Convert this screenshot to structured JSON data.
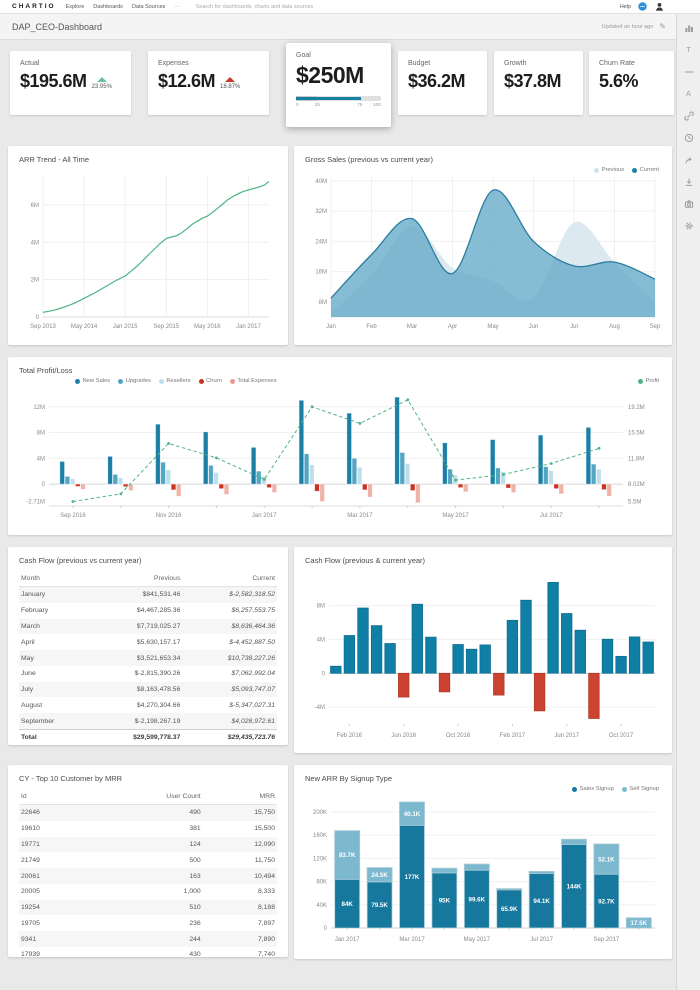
{
  "nav": {
    "brand": "CHARTIO",
    "links": [
      "Explore",
      "Dashboards",
      "Data Sources"
    ],
    "more_label": "⋯",
    "search_placeholder": "Search for dashboards, charts and data sources",
    "help_label": "Help"
  },
  "breadcrumb": {
    "title": "DAP_CEO-Dashboard",
    "updated": "Updated an hour ago"
  },
  "sidebar_icons": [
    "bar-chart",
    "text",
    "divider",
    "annotation",
    "link",
    "history",
    "share",
    "download",
    "camera",
    "settings"
  ],
  "kpis": [
    {
      "label": "Actual",
      "value": "$195.6M",
      "delta": "23.95%",
      "direction": "up",
      "trend_color": "#6fbf9a"
    },
    {
      "label": "Expenses",
      "value": "$12.6M",
      "delta": "18.87%",
      "direction": "up",
      "trend_color": "#cc3a28"
    },
    {
      "label": "Goal",
      "value": "$250M",
      "gauge": {
        "ticks": [
          "0",
          "25",
          "75",
          "100"
        ],
        "tick_pcts": [
          0,
          25,
          75,
          100
        ],
        "fill_pct": 77,
        "band_pct": 25,
        "fill_color": "#15809f"
      }
    },
    {
      "label": "Budget",
      "value": "$36.2M"
    },
    {
      "label": "Growth",
      "value": "$37.8M"
    },
    {
      "label": "Churn Rate",
      "value": "5.6%"
    }
  ],
  "chart_data": [
    {
      "id": "arr_trend",
      "type": "line",
      "title": "ARR Trend - All Time",
      "line_color": "#4db584",
      "ylim": [
        0,
        7.6
      ],
      "yticks": [
        {
          "label": "0",
          "value": 0
        },
        {
          "label": "2M",
          "value": 2
        },
        {
          "label": "4M",
          "value": 4
        },
        {
          "label": "6M",
          "value": 6
        }
      ],
      "x_labels": [
        "Sep 2013",
        "May 2014",
        "Jan 2015",
        "Sep 2015",
        "May 2016",
        "Jan 2017"
      ],
      "x_label_indices": [
        0,
        8,
        16,
        24,
        32,
        40
      ],
      "values": [
        0.25,
        0.3,
        0.36,
        0.43,
        0.52,
        0.62,
        0.73,
        0.86,
        1.0,
        1.14,
        1.28,
        1.44,
        1.6,
        1.76,
        1.92,
        2.06,
        2.2,
        2.42,
        2.65,
        2.9,
        3.18,
        3.45,
        3.72,
        3.98,
        4.2,
        4.28,
        4.35,
        4.5,
        4.72,
        4.95,
        5.12,
        5.28,
        5.4,
        5.6,
        5.82,
        6.05,
        6.28,
        6.45,
        6.6,
        6.72,
        6.8,
        6.88,
        6.95,
        7.05,
        7.25
      ]
    },
    {
      "id": "gross_sales",
      "type": "area",
      "title": "Gross Sales (previous vs current year)",
      "legend": [
        {
          "label": "Previous",
          "color": "#cfe3ec"
        },
        {
          "label": "Current",
          "color": "#1f7fa8"
        }
      ],
      "categories": [
        "Jan",
        "Feb",
        "Mar",
        "Apr",
        "May",
        "Jun",
        "Jul",
        "Aug",
        "Sep"
      ],
      "ylim": [
        4,
        41
      ],
      "yticks": [
        {
          "label": "8M",
          "value": 8
        },
        {
          "label": "16M",
          "value": 16
        },
        {
          "label": "24M",
          "value": 24
        },
        {
          "label": "32M",
          "value": 32
        },
        {
          "label": "40M",
          "value": 40
        }
      ],
      "series": [
        {
          "name": "Previous",
          "fill": "#d9e7ef",
          "values": [
            5,
            15,
            28,
            17,
            13.5,
            9,
            29,
            18.5,
            8
          ]
        },
        {
          "name": "Current",
          "fill": "#64a9c8",
          "stroke": "#2b7d9f",
          "values": [
            9,
            20.5,
            30,
            15.5,
            37.5,
            24,
            17.5,
            18.5,
            14
          ]
        }
      ]
    },
    {
      "id": "profit_loss",
      "type": "grouped-bar-line",
      "title": "Total Profit/Loss",
      "legend": [
        {
          "label": "New Sales",
          "color": "#1b7fa8"
        },
        {
          "label": "Upgrades",
          "color": "#53a5c4"
        },
        {
          "label": "Resellers",
          "color": "#bfdeeb"
        },
        {
          "label": "Churn",
          "color": "#cc3322"
        },
        {
          "label": "Total Expenses",
          "color": "#e8998c"
        }
      ],
      "legend_right": [
        {
          "label": "Profit",
          "color": "#4db584"
        }
      ],
      "categories": [
        "Sep 2016",
        "Oct 2016",
        "Nov 2016",
        "Dec 2016",
        "Jan 2017",
        "Feb 2017",
        "Mar 2017",
        "Apr 2017",
        "May 2017",
        "Jun 2017",
        "Jul 2017",
        "Aug 2017"
      ],
      "x_labels": [
        "Sep 2016",
        "Nov 2016",
        "Jan 2017",
        "Mar 2017",
        "May 2017",
        "Jul 2017"
      ],
      "x_label_indices": [
        0,
        2,
        4,
        6,
        8,
        10
      ],
      "ylim": [
        -3.4,
        14.6
      ],
      "left_ticks": [
        {
          "label": "12M",
          "value": 12
        },
        {
          "label": "8M",
          "value": 8
        },
        {
          "label": "4M",
          "value": 4
        },
        {
          "label": "0",
          "value": 0
        },
        {
          "label": "-2.71M",
          "value": -2.71
        }
      ],
      "right_ticks": [
        {
          "label": "19.2M",
          "value": 12
        },
        {
          "label": "15.5M",
          "value": 8
        },
        {
          "label": "11.8M",
          "value": 4
        },
        {
          "label": "8.02M",
          "value": 0
        },
        {
          "label": "5.5M",
          "value": -2.71
        }
      ],
      "right_axis": {
        "at_left_0": 8.02,
        "at_left_12": 19.2
      },
      "series": [
        {
          "name": "New Sales",
          "color": "#1b7fa8",
          "values": [
            3.5,
            4.3,
            9.3,
            8.1,
            5.7,
            13.0,
            11.0,
            13.5,
            6.4,
            6.9,
            7.6,
            8.8
          ]
        },
        {
          "name": "Upgrades",
          "color": "#53a5c4",
          "values": [
            1.2,
            1.5,
            3.4,
            2.9,
            2.0,
            4.7,
            4.0,
            4.9,
            2.3,
            2.5,
            2.7,
            3.1
          ]
        },
        {
          "name": "Resellers",
          "color": "#bfdeeb",
          "values": [
            0.8,
            0.95,
            2.2,
            1.8,
            1.2,
            3.0,
            2.6,
            3.2,
            1.4,
            1.9,
            2.1,
            2.3
          ]
        },
        {
          "name": "Churn",
          "color": "#cc3322",
          "values": [
            -0.35,
            -0.4,
            -0.9,
            -0.7,
            -0.55,
            -1.1,
            -0.9,
            -1.0,
            -0.55,
            -0.6,
            -0.7,
            -0.85
          ]
        },
        {
          "name": "Total Expenses",
          "color": "#e8998c",
          "values": [
            -0.8,
            -1.0,
            -1.9,
            -1.6,
            -1.3,
            -2.7,
            -2.0,
            -2.9,
            -1.2,
            -1.3,
            -1.5,
            -1.9
          ]
        }
      ],
      "profit": {
        "name": "Profit",
        "axis": "right",
        "color": "#4db584",
        "values": [
          5.5,
          6.6,
          13.9,
          11.8,
          8.7,
          19.2,
          16.8,
          20.2,
          8.6,
          9.4,
          11.0,
          13.2
        ]
      }
    },
    {
      "id": "cash_flow_table",
      "type": "table",
      "title": "Cash Flow (previous vs current year)",
      "columns": [
        "Month",
        "Previous",
        "Current"
      ],
      "rows": [
        [
          "January",
          "$841,531.46",
          "$-2,582,318.52"
        ],
        [
          "February",
          "$4,467,285.36",
          "$6,257,553.75"
        ],
        [
          "March",
          "$7,719,025.27",
          "$8,636,464.36"
        ],
        [
          "April",
          "$5,630,157.17",
          "$-4,452,887.50"
        ],
        [
          "May",
          "$3,521,653.34",
          "$10,738,227.26"
        ],
        [
          "June",
          "$-2,815,390.26",
          "$7,062,992.04"
        ],
        [
          "July",
          "$8,163,478.56",
          "$5,093,747.07"
        ],
        [
          "August",
          "$4,270,304.66",
          "$-5,347,027.31"
        ],
        [
          "September",
          "$-2,198,267.19",
          "$4,028,972.61"
        ]
      ],
      "total_row": [
        "Total",
        "$29,599,778.37",
        "$29,435,723.76"
      ]
    },
    {
      "id": "cash_flow_chart",
      "type": "bar",
      "title": "Cash Flow (previous & current year)",
      "pos_color": "#0f7fa6",
      "neg_color": "#cc4431",
      "ylim": [
        -6,
        11.5
      ],
      "yticks": [
        {
          "label": "-4M",
          "value": -4
        },
        {
          "label": "0",
          "value": 0
        },
        {
          "label": "4M",
          "value": 4
        },
        {
          "label": "8M",
          "value": 8
        }
      ],
      "x_labels": [
        "Feb 2016",
        "Jun 2016",
        "Oct 2016",
        "Feb 2017",
        "Jun 2017",
        "Oct 2017"
      ],
      "x_label_indices": [
        1,
        5,
        9,
        13,
        17,
        21
      ],
      "values": [
        0.84,
        4.47,
        7.72,
        5.63,
        3.52,
        -2.82,
        8.16,
        4.27,
        -2.2,
        3.4,
        2.85,
        3.35,
        -2.58,
        6.26,
        8.64,
        -4.45,
        10.74,
        7.06,
        5.09,
        -5.35,
        4.03,
        2.0,
        4.3,
        3.7
      ]
    },
    {
      "id": "top_customers",
      "type": "table",
      "title": "CY - Top 10 Customer by MRR",
      "columns": [
        "Id",
        "User Count",
        "MRR"
      ],
      "rows": [
        [
          "22646",
          "490",
          "15,750"
        ],
        [
          "19610",
          "381",
          "15,500"
        ],
        [
          "19771",
          "124",
          "12,090"
        ],
        [
          "21749",
          "500",
          "11,750"
        ],
        [
          "20061",
          "163",
          "10,494"
        ],
        [
          "20005",
          "1,000",
          "8,333"
        ],
        [
          "19254",
          "510",
          "8,188"
        ],
        [
          "19705",
          "236",
          "7,897"
        ],
        [
          "9341",
          "244",
          "7,890"
        ],
        [
          "17939",
          "430",
          "7,740"
        ]
      ]
    },
    {
      "id": "new_arr",
      "type": "stacked-bar",
      "title": "New ARR By Signup Type",
      "legend": [
        {
          "label": "Sales Signup",
          "color": "#16789c"
        },
        {
          "label": "Self Signup",
          "color": "#7cb9cf"
        }
      ],
      "ylim": [
        0,
        224
      ],
      "yticks": [
        {
          "label": "0",
          "value": 0
        },
        {
          "label": "40K",
          "value": 40
        },
        {
          "label": "80K",
          "value": 80
        },
        {
          "label": "120K",
          "value": 120
        },
        {
          "label": "160K",
          "value": 160
        },
        {
          "label": "200K",
          "value": 200
        }
      ],
      "x_labels": [
        "Jan 2017",
        "Mar 2017",
        "May 2017",
        "Jul 2017",
        "Sep 2017"
      ],
      "x_label_indices": [
        0,
        2,
        4,
        6,
        8
      ],
      "series": [
        {
          "name": "Sales Signup",
          "color": "#16789c",
          "values": [
            84,
            79.5,
            177,
            95,
            99.6,
            65.9,
            94.1,
            144,
            92.7,
            0
          ],
          "labels": [
            "84K",
            "79.5K",
            "177K",
            "95K",
            "99.6K",
            "65.9K",
            "94.1K",
            "144K",
            "92.7K",
            ""
          ]
        },
        {
          "name": "Self Signup",
          "color": "#7cb9cf",
          "values": [
            83.7,
            24.5,
            40.1,
            8,
            10.5,
            2,
            3.5,
            9,
            52.1,
            17.5
          ],
          "labels": [
            "83.7K",
            "24.5K",
            "40.1K",
            "",
            "",
            "",
            "",
            "",
            "52.1K",
            "17.5K"
          ]
        }
      ]
    }
  ]
}
